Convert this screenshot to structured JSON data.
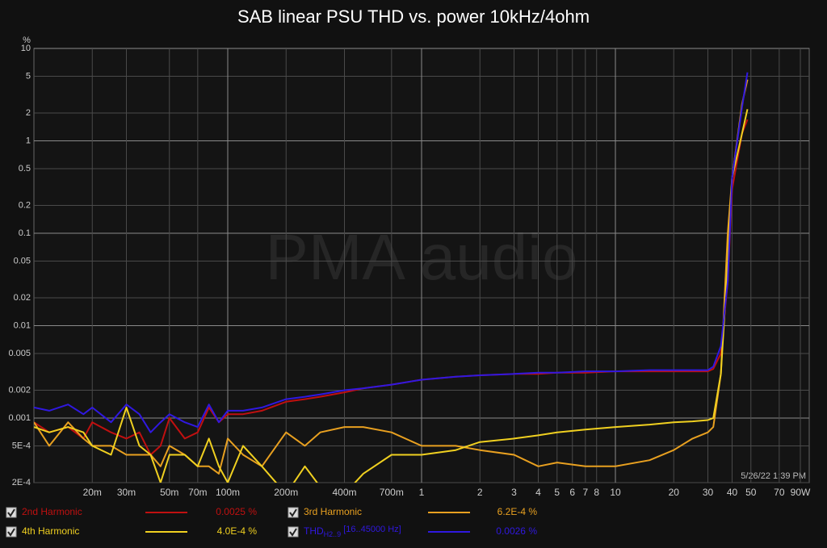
{
  "chart_data": {
    "type": "line",
    "title": "SAB linear PSU THD vs. power 10kHz/4ohm",
    "y_unit": "%",
    "watermark": "PMA audio",
    "timestamp": "5/26/22 1:39 PM",
    "log_x": true,
    "log_y": true,
    "grid": true,
    "xlim": [
      0.01,
      100
    ],
    "ylim": [
      0.0002,
      10
    ],
    "xticks": [
      {
        "value": 0.02,
        "label": "20m"
      },
      {
        "value": 0.03,
        "label": "30m"
      },
      {
        "value": 0.05,
        "label": "50m"
      },
      {
        "value": 0.07,
        "label": "70m"
      },
      {
        "value": 0.1,
        "label": "100m"
      },
      {
        "value": 0.2,
        "label": "200m"
      },
      {
        "value": 0.4,
        "label": "400m"
      },
      {
        "value": 0.7,
        "label": "700m"
      },
      1,
      2,
      3,
      4,
      5,
      6,
      7,
      8,
      10,
      20,
      30,
      40,
      50,
      70,
      {
        "value": 90,
        "label": "90W"
      }
    ],
    "yticks": [
      10,
      5,
      2,
      1,
      0.5,
      0.2,
      0.1,
      0.05,
      0.02,
      0.01,
      0.005,
      0.002,
      0.001,
      {
        "value": 0.0005,
        "label": "5E-4"
      },
      {
        "value": 0.0002,
        "label": "2E-4"
      }
    ],
    "x": [
      0.01,
      0.012,
      0.015,
      0.018,
      0.02,
      0.025,
      0.03,
      0.035,
      0.04,
      0.045,
      0.05,
      0.06,
      0.07,
      0.08,
      0.09,
      0.1,
      0.12,
      0.15,
      0.2,
      0.25,
      0.3,
      0.4,
      0.5,
      0.7,
      1,
      1.5,
      2,
      3,
      4,
      5,
      7,
      10,
      15,
      20,
      25,
      30,
      32,
      35,
      38,
      40,
      45,
      48
    ],
    "series": [
      {
        "name": "2nd Harmonic",
        "color": "#c01010",
        "readout": "0.0025 %",
        "values": [
          0.0009,
          0.0007,
          0.0008,
          0.0006,
          0.0009,
          0.0007,
          0.0006,
          0.0007,
          0.0004,
          0.0005,
          0.001,
          0.0006,
          0.0007,
          0.0013,
          0.0009,
          0.0011,
          0.0011,
          0.0012,
          0.0015,
          0.0016,
          0.0017,
          0.0019,
          0.0021,
          0.0023,
          0.0026,
          0.0028,
          0.0029,
          0.003,
          0.003,
          0.0031,
          0.0031,
          0.0032,
          0.0032,
          0.0032,
          0.0032,
          0.0032,
          0.0034,
          0.005,
          0.03,
          0.3,
          1.2,
          1.7
        ]
      },
      {
        "name": "3rd Harmonic",
        "color": "#e8a020",
        "readout": "6.2E-4 %",
        "values": [
          0.0009,
          0.0005,
          0.0009,
          0.0006,
          0.0005,
          0.0005,
          0.0004,
          0.0004,
          0.0004,
          0.0003,
          0.0005,
          0.0004,
          0.0003,
          0.0003,
          0.00025,
          0.0006,
          0.0004,
          0.0003,
          0.0007,
          0.0005,
          0.0007,
          0.0008,
          0.0008,
          0.0007,
          0.0005,
          0.0005,
          0.00045,
          0.0004,
          0.0003,
          0.00033,
          0.0003,
          0.0003,
          0.00035,
          0.00045,
          0.0006,
          0.0007,
          0.0008,
          0.003,
          0.1,
          0.4,
          2.5,
          4.6
        ]
      },
      {
        "name": "4th Harmonic",
        "color": "#f0d020",
        "readout": "4.0E-4 %",
        "values": [
          0.0008,
          0.0007,
          0.0008,
          0.0007,
          0.0005,
          0.0004,
          0.0013,
          0.0005,
          0.0004,
          0.0002,
          0.0004,
          0.0004,
          0.0003,
          0.0006,
          0.0003,
          0.0002,
          0.0005,
          0.0003,
          0.00015,
          0.0003,
          0.00018,
          0.00015,
          0.00025,
          0.0004,
          0.0004,
          0.00045,
          0.00055,
          0.0006,
          0.00065,
          0.0007,
          0.00075,
          0.0008,
          0.00085,
          0.0009,
          0.00092,
          0.00095,
          0.001,
          0.003,
          0.05,
          0.4,
          1.2,
          2.2
        ]
      },
      {
        "name": "THD",
        "name_sub": "H2..9",
        "name_range": "[16..45000 Hz]",
        "color": "#3018e0",
        "readout": "0.0026 %",
        "values": [
          0.0013,
          0.0012,
          0.0014,
          0.0011,
          0.0013,
          0.0009,
          0.0014,
          0.0011,
          0.0007,
          0.0009,
          0.0011,
          0.0009,
          0.0008,
          0.0014,
          0.0009,
          0.0012,
          0.0012,
          0.0013,
          0.0016,
          0.0017,
          0.0018,
          0.002,
          0.0021,
          0.0023,
          0.0026,
          0.0028,
          0.0029,
          0.003,
          0.0031,
          0.0031,
          0.0032,
          0.0032,
          0.0033,
          0.0033,
          0.0033,
          0.0033,
          0.0036,
          0.006,
          0.03,
          0.4,
          2.3,
          5.5
        ]
      }
    ]
  }
}
